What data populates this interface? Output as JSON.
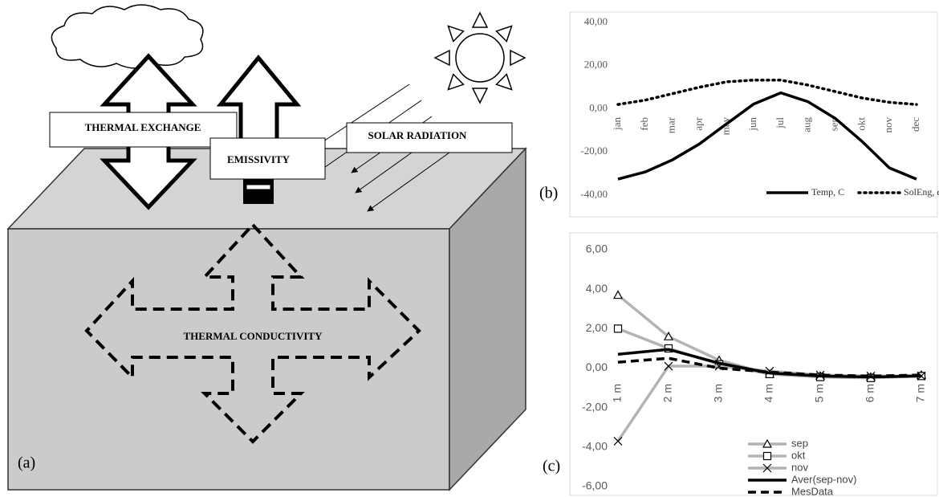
{
  "diagram": {
    "panel_label": "(a)",
    "exchange_label": "THERMAL EXCHANGE",
    "emissivity_label": "EMISSIVITY",
    "solar_label": "SOLAR RADIATION",
    "conductivity_label": "THERMAL CONDUCTIVITY"
  },
  "chart_data": [
    {
      "type": "line",
      "panel_label": "(b)",
      "categories": [
        "jan",
        "feb",
        "mar",
        "apr",
        "may",
        "jun",
        "jul",
        "aug",
        "sep",
        "okt",
        "nov",
        "dec"
      ],
      "series": [
        {
          "name": "Temp, C",
          "color": "#000000",
          "style": "solid",
          "values": [
            -32.6,
            -29.3,
            -23.7,
            -16.3,
            -7,
            2.2,
            7.4,
            3.3,
            -4.4,
            -15.2,
            -27.4,
            -32.6
          ]
        },
        {
          "name": "SolEng, dW/sm",
          "color": "#000000",
          "style": "dotted",
          "values": [
            2,
            4,
            7,
            10,
            12.5,
            13.3,
            13.3,
            11,
            8,
            5,
            3,
            2
          ]
        }
      ],
      "ylim": [
        -40,
        40
      ],
      "yticks": [
        {
          "value": -40,
          "label": "-40,00"
        },
        {
          "value": -20,
          "label": "-20,00"
        },
        {
          "value": 0,
          "label": "0,00"
        },
        {
          "value": 20,
          "label": "20,00"
        },
        {
          "value": 40,
          "label": "40,00"
        }
      ],
      "grid": false,
      "legend": "bottom-right"
    },
    {
      "type": "line",
      "panel_label": "(c)",
      "categories": [
        "1 m",
        "2 m",
        "3 m",
        "4 m",
        "5 m",
        "6 m",
        "7 m"
      ],
      "series": [
        {
          "name": "sep",
          "color": "#b3b3b3",
          "style": "solid",
          "marker": "triangle",
          "values": [
            3.7,
            1.6,
            0.4,
            -0.3,
            -0.4,
            -0.45,
            -0.35
          ]
        },
        {
          "name": "okt",
          "color": "#b3b3b3",
          "style": "solid",
          "marker": "square",
          "values": [
            2.0,
            1.0,
            0.2,
            -0.3,
            -0.45,
            -0.5,
            -0.4
          ]
        },
        {
          "name": "nov",
          "color": "#b3b3b3",
          "style": "solid",
          "marker": "x",
          "values": [
            -3.7,
            0.1,
            0.1,
            -0.15,
            -0.35,
            -0.4,
            -0.4
          ]
        },
        {
          "name": "Aver(sep-nov)",
          "color": "#000000",
          "style": "solid",
          "values": [
            0.7,
            0.95,
            0.25,
            -0.25,
            -0.4,
            -0.45,
            -0.4
          ]
        },
        {
          "name": "MesData",
          "color": "#000000",
          "style": "dashed",
          "values": [
            0.3,
            0.5,
            0.0,
            -0.2,
            -0.35,
            -0.4,
            -0.35
          ]
        }
      ],
      "ylim": [
        -6,
        6
      ],
      "yticks": [
        {
          "value": -6,
          "label": "-6,00"
        },
        {
          "value": -4,
          "label": "-4,00"
        },
        {
          "value": -2,
          "label": "-2,00"
        },
        {
          "value": 0,
          "label": "0,00"
        },
        {
          "value": 2,
          "label": "2,00"
        },
        {
          "value": 4,
          "label": "4,00"
        },
        {
          "value": 6,
          "label": "6,00"
        }
      ],
      "grid": false,
      "legend": "bottom"
    }
  ]
}
